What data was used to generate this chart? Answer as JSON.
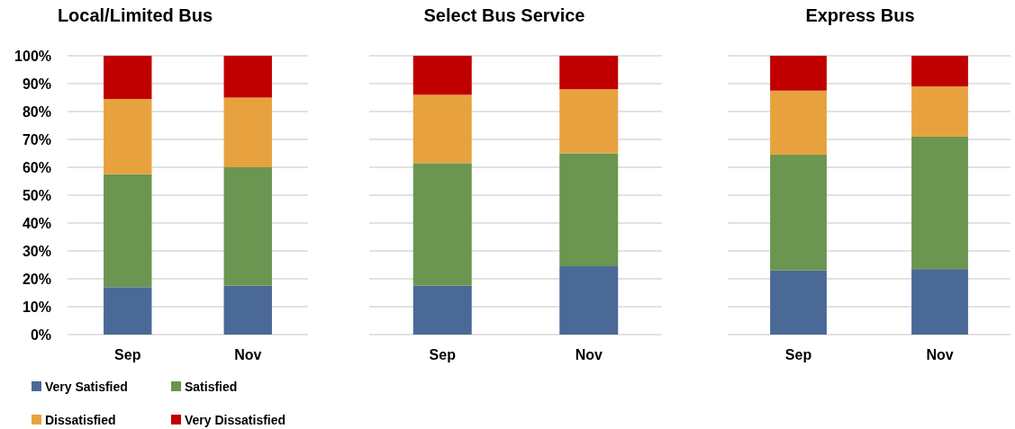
{
  "chart_data": [
    {
      "type": "bar",
      "title": "Local/Limited Bus",
      "categories": [
        "Sep",
        "Nov"
      ],
      "stacked": true,
      "series": [
        {
          "name": "Very Satisfied",
          "color": "#4a6996",
          "values": [
            17,
            17.5
          ]
        },
        {
          "name": "Satisfied",
          "color": "#6a9651",
          "values": [
            40.5,
            42.5
          ]
        },
        {
          "name": "Dissatisfied",
          "color": "#e7a23f",
          "values": [
            27,
            25
          ]
        },
        {
          "name": "Very Dissatisfied",
          "color": "#c00000",
          "values": [
            15.5,
            15
          ]
        }
      ],
      "ylim": [
        0,
        100
      ],
      "yticks": [
        {
          "value": 0,
          "label": "0%"
        },
        {
          "value": 10,
          "label": "10%"
        },
        {
          "value": 20,
          "label": "20%"
        },
        {
          "value": 30,
          "label": "30%"
        },
        {
          "value": 40,
          "label": "40%"
        },
        {
          "value": 50,
          "label": "50%"
        },
        {
          "value": 60,
          "label": "60%"
        },
        {
          "value": 70,
          "label": "70%"
        },
        {
          "value": 80,
          "label": "80%"
        },
        {
          "value": 90,
          "label": "90%"
        },
        {
          "value": 100,
          "label": "100%"
        }
      ],
      "grid": "y",
      "legend": "bottom"
    },
    {
      "type": "bar",
      "title": "Select Bus Service",
      "categories": [
        "Sep",
        "Nov"
      ],
      "stacked": true,
      "series": [
        {
          "color": "#4a6996",
          "values": [
            17.5,
            24.5
          ]
        },
        {
          "color": "#6a9651",
          "values": [
            44,
            40.5
          ]
        },
        {
          "color": "#e7a23f",
          "values": [
            24.5,
            23
          ]
        },
        {
          "color": "#c00000",
          "values": [
            14,
            12
          ]
        }
      ],
      "ylim": [
        0,
        100
      ],
      "yticks": [
        0,
        10,
        20,
        30,
        40,
        50,
        60,
        70,
        80,
        90,
        100
      ],
      "tick_labels": "x",
      "grid": "y"
    },
    {
      "type": "bar",
      "title": "Express Bus",
      "categories": [
        "Sep",
        "Nov"
      ],
      "stacked": true,
      "series": [
        {
          "color": "#4a6996",
          "values": [
            23,
            23.5
          ]
        },
        {
          "color": "#6a9651",
          "values": [
            41.5,
            47.5
          ]
        },
        {
          "color": "#e7a23f",
          "values": [
            23,
            18
          ]
        },
        {
          "color": "#c00000",
          "values": [
            12.5,
            11
          ]
        }
      ],
      "ylim": [
        0,
        100
      ],
      "yticks": [
        0,
        10,
        20,
        30,
        40,
        50,
        60,
        70,
        80,
        90,
        100
      ],
      "tick_labels": "x",
      "grid": "y"
    }
  ]
}
